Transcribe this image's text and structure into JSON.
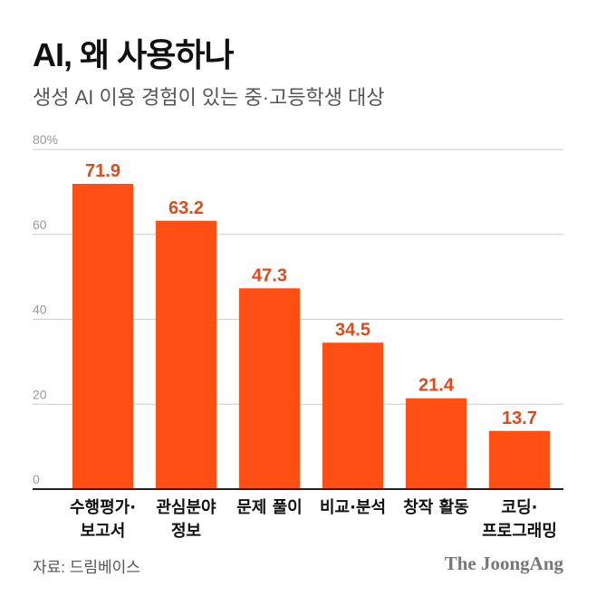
{
  "header": {
    "title": "AI, 왜 사용하나",
    "subtitle": "생성 AI 이용 경험이 있는 중·고등학생 대상"
  },
  "footer": {
    "source": "자료: 드림베이스",
    "logo": "The JoongAng"
  },
  "colors": {
    "bar": "#FF4F14",
    "value_label": "#E04A1A",
    "grid": "#CCCCCC",
    "axis": "#222222"
  },
  "chart_data": {
    "type": "bar",
    "title": "AI, 왜 사용하나",
    "subtitle": "생성 AI 이용 경험이 있는 중·고등학생 대상",
    "categories": [
      [
        "수행평가·",
        "보고서"
      ],
      [
        "관심분야",
        "정보"
      ],
      [
        "문제 풀이"
      ],
      [
        "비교·분석"
      ],
      [
        "창작 활동"
      ],
      [
        "코딩·",
        "프로그래밍"
      ]
    ],
    "values": [
      71.9,
      63.2,
      47.3,
      34.5,
      21.4,
      13.7
    ],
    "value_labels": [
      "71.9",
      "63.2",
      "47.3",
      "34.5",
      "21.4",
      "13.7"
    ],
    "yticks": [
      0,
      20,
      40,
      60,
      80
    ],
    "ytick_labels": [
      "0",
      "20",
      "40",
      "60",
      "80%"
    ],
    "ylim": [
      0,
      80
    ],
    "xlabel": "",
    "ylabel": "",
    "grid": true
  }
}
